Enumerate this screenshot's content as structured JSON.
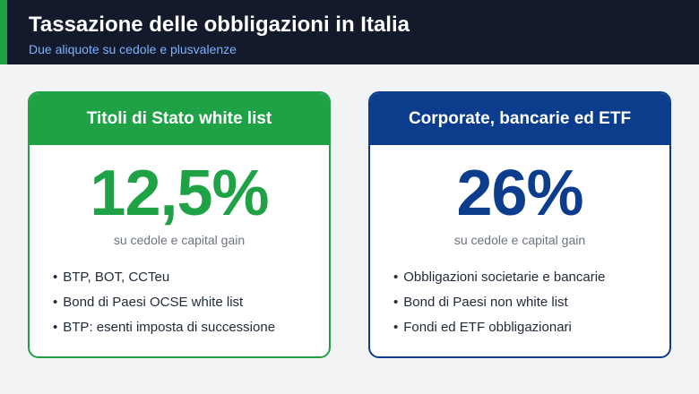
{
  "header": {
    "title": "Tassazione delle obbligazioni in Italia",
    "subtitle": "Due aliquote su cedole e plusvalenze",
    "accent_color": "#1fa146",
    "background_color": "#121a2b"
  },
  "cards": [
    {
      "title": "Titoli di Stato white list",
      "rate": "12,5%",
      "note": "su cedole e capital gain",
      "color": "#1fa146",
      "bullet_symbol": "•",
      "items": [
        "BTP, BOT, CCTeu",
        "Bond di Paesi OCSE white list",
        "BTP: esenti imposta di successione"
      ]
    },
    {
      "title": "Corporate, bancarie ed ETF",
      "rate": "26%",
      "note": "su cedole e capital gain",
      "color": "#0b3d8c",
      "bullet_symbol": "•",
      "items": [
        "Obbligazioni societarie e bancarie",
        "Bond di Paesi non white list",
        "Fondi ed ETF obbligazionari"
      ]
    }
  ]
}
